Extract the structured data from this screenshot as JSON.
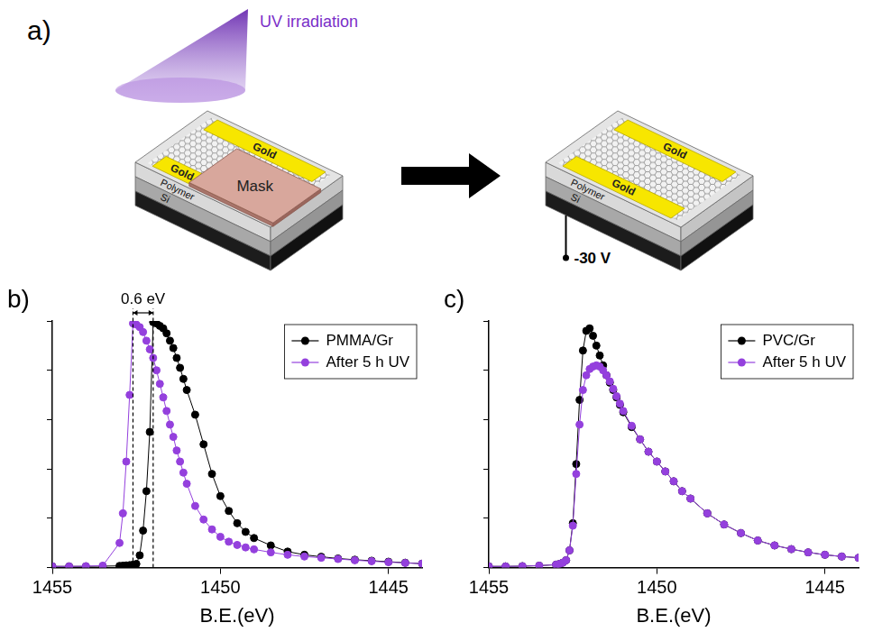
{
  "diagram": {
    "panel": "a)",
    "uv_label": "UV irradiation",
    "before": {
      "gold_labels": [
        "Gold",
        "Gold"
      ],
      "mask": "Mask",
      "layers": [
        "Polymer",
        "Si"
      ]
    },
    "after": {
      "gold_labels": [
        "Gold",
        "Gold"
      ],
      "layers": [
        "Polymer",
        "Si"
      ],
      "bias": "-30 V"
    }
  },
  "chart_data": [
    {
      "panel": "b)",
      "type": "line",
      "x_label": "B.E.(eV)",
      "x": [
        1455,
        1454.5,
        1454,
        1453.5,
        1453,
        1452.9,
        1452.8,
        1452.7,
        1452.6,
        1452.5,
        1452.4,
        1452.3,
        1452.2,
        1452.1,
        1452,
        1451.9,
        1451.8,
        1451.7,
        1451.6,
        1451.5,
        1451.4,
        1451.3,
        1451.2,
        1451.1,
        1451,
        1450.75,
        1450.5,
        1450.25,
        1450,
        1449.75,
        1449.5,
        1449.25,
        1449,
        1448.5,
        1448,
        1447.5,
        1447,
        1446.5,
        1446,
        1445.5,
        1445,
        1444.5,
        1444
      ],
      "series": [
        {
          "name": "PMMA/Gr",
          "color": "#000000",
          "marker": "circle",
          "values": [
            0.005,
            0.005,
            0.005,
            0.006,
            0.007,
            0.008,
            0.009,
            0.01,
            0.012,
            0.015,
            0.05,
            0.15,
            0.31,
            0.55,
            0.995,
            0.99,
            0.98,
            0.97,
            0.95,
            0.92,
            0.89,
            0.85,
            0.81,
            0.765,
            0.72,
            0.62,
            0.5,
            0.38,
            0.29,
            0.23,
            0.18,
            0.145,
            0.12,
            0.09,
            0.065,
            0.052,
            0.044,
            0.037,
            0.032,
            0.028,
            0.024,
            0.02,
            0.016
          ]
        },
        {
          "name": "After 5 h UV",
          "color": "#9440dd",
          "marker": "circle",
          "values": [
            0.005,
            0.005,
            0.006,
            0.008,
            0.1,
            0.22,
            0.43,
            0.7,
            0.99,
            0.985,
            0.975,
            0.955,
            0.92,
            0.885,
            0.85,
            0.8,
            0.745,
            0.69,
            0.635,
            0.58,
            0.53,
            0.475,
            0.43,
            0.385,
            0.34,
            0.25,
            0.195,
            0.155,
            0.125,
            0.105,
            0.092,
            0.082,
            0.074,
            0.062,
            0.052,
            0.045,
            0.04,
            0.035,
            0.03,
            0.026,
            0.022,
            0.019,
            0.016
          ]
        }
      ],
      "xlim": [
        1455,
        1444
      ],
      "xticks": [
        1455,
        1450,
        1445
      ],
      "ylim": [
        0,
        1
      ],
      "yticks": [
        0,
        0.2,
        0.4,
        0.6,
        0.8,
        1
      ],
      "tick_labels": "x",
      "grid": false,
      "legend": "upper right",
      "annotations": [
        {
          "text": "0.6 eV",
          "x": [
            1452.6,
            1452.0
          ]
        }
      ]
    },
    {
      "panel": "c)",
      "type": "line",
      "x_label": "B.E.(eV)",
      "x": [
        1455,
        1454.5,
        1454,
        1453.5,
        1453,
        1452.9,
        1452.8,
        1452.7,
        1452.6,
        1452.5,
        1452.4,
        1452.3,
        1452.2,
        1452.1,
        1452,
        1451.9,
        1451.8,
        1451.7,
        1451.6,
        1451.5,
        1451.4,
        1451.3,
        1451.2,
        1451.1,
        1451,
        1450.75,
        1450.5,
        1450.25,
        1450,
        1449.75,
        1449.5,
        1449.25,
        1449,
        1448.5,
        1448,
        1447.5,
        1447,
        1446.5,
        1446,
        1445.5,
        1445,
        1444.5,
        1444
      ],
      "series": [
        {
          "name": "PVC/Gr",
          "color": "#000000",
          "marker": "circle",
          "values": [
            0.005,
            0.005,
            0.006,
            0.008,
            0.012,
            0.015,
            0.02,
            0.03,
            0.07,
            0.18,
            0.42,
            0.68,
            0.88,
            0.96,
            0.97,
            0.94,
            0.9,
            0.86,
            0.82,
            0.78,
            0.75,
            0.72,
            0.69,
            0.66,
            0.63,
            0.57,
            0.52,
            0.47,
            0.43,
            0.39,
            0.35,
            0.31,
            0.28,
            0.22,
            0.175,
            0.14,
            0.11,
            0.09,
            0.075,
            0.062,
            0.052,
            0.045,
            0.04
          ]
        },
        {
          "name": "After 5 h UV",
          "color": "#9440dd",
          "marker": "circle",
          "values": [
            0.005,
            0.005,
            0.006,
            0.008,
            0.012,
            0.015,
            0.02,
            0.03,
            0.07,
            0.17,
            0.38,
            0.58,
            0.72,
            0.78,
            0.805,
            0.815,
            0.82,
            0.815,
            0.8,
            0.78,
            0.755,
            0.725,
            0.695,
            0.665,
            0.635,
            0.575,
            0.52,
            0.47,
            0.43,
            0.39,
            0.35,
            0.31,
            0.28,
            0.22,
            0.175,
            0.14,
            0.11,
            0.09,
            0.075,
            0.062,
            0.052,
            0.045,
            0.04
          ]
        }
      ],
      "xlim": [
        1455,
        1444
      ],
      "xticks": [
        1455,
        1450,
        1445
      ],
      "ylim": [
        0,
        1
      ],
      "yticks": [
        0,
        0.2,
        0.4,
        0.6,
        0.8,
        1
      ],
      "tick_labels": "x",
      "grid": false,
      "legend": "upper right"
    }
  ]
}
